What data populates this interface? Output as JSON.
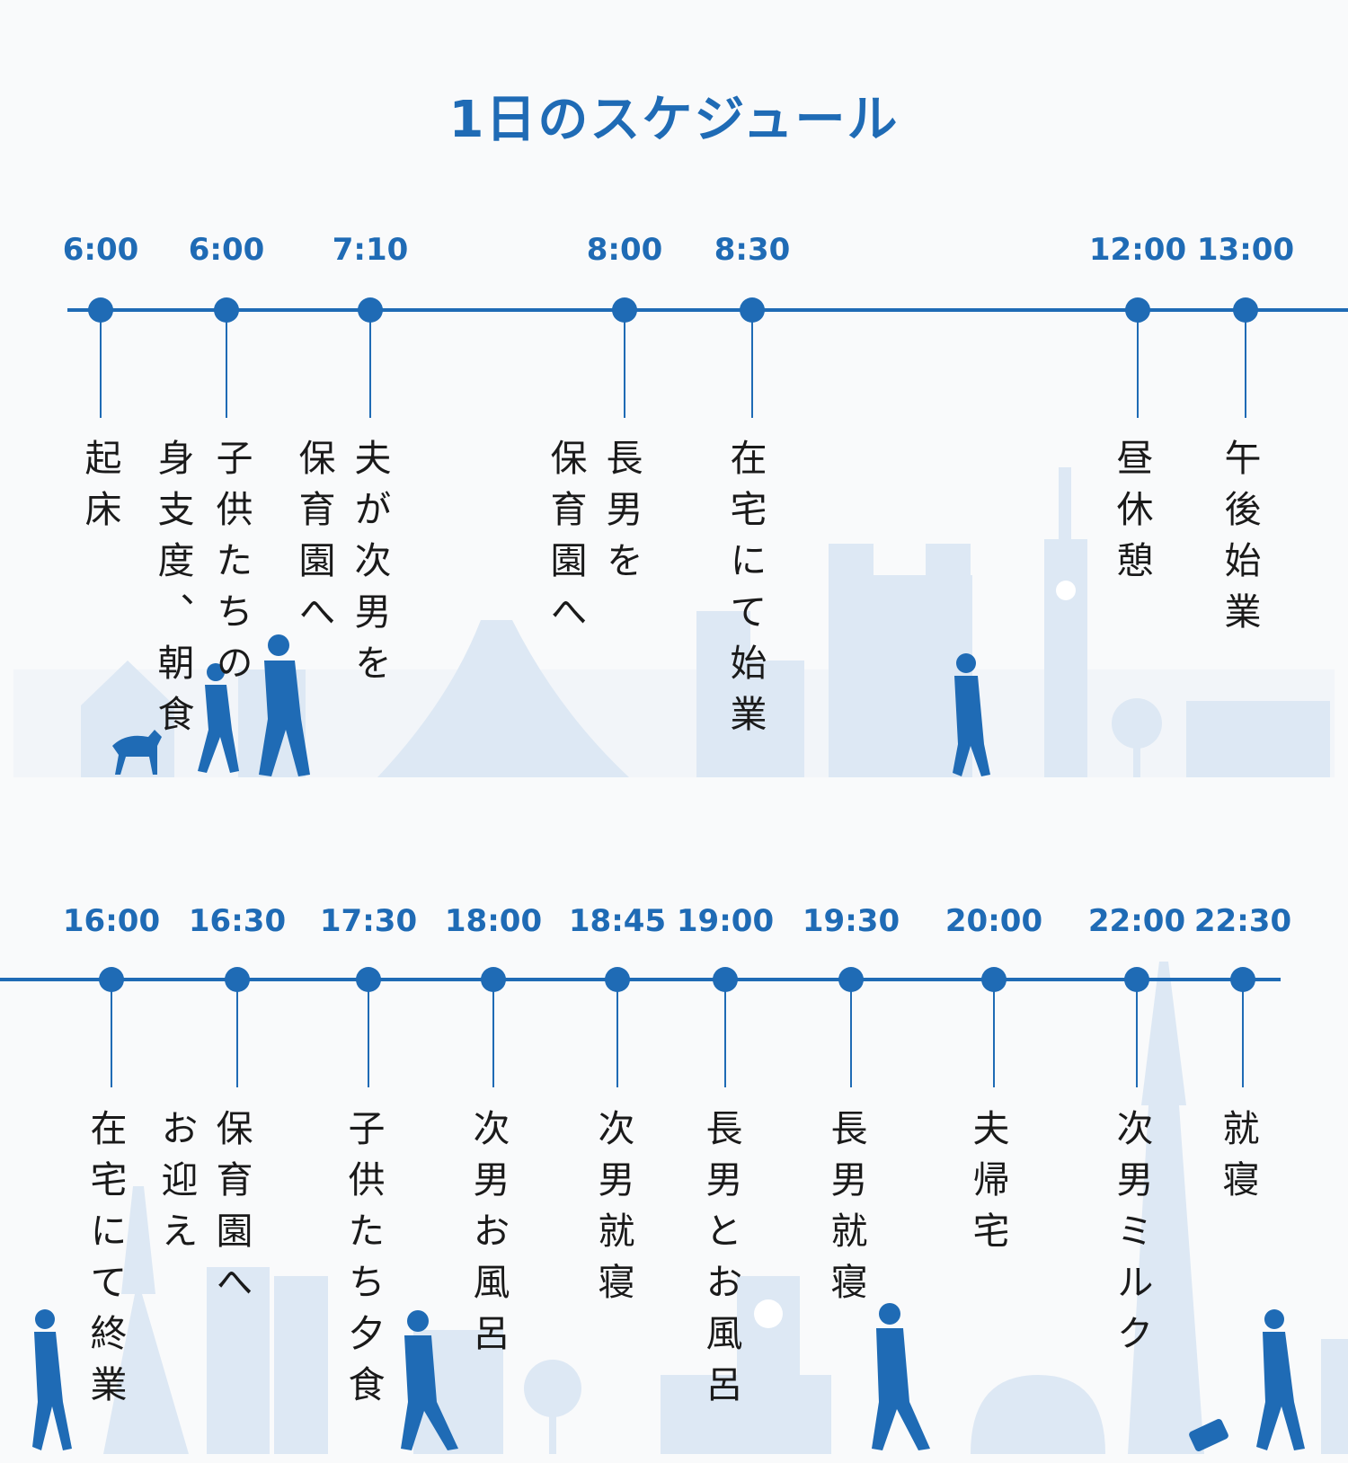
{
  "title": "1日のスケジュール",
  "rows": [
    {
      "events": [
        {
          "time": "6:00",
          "lines": [
            "起床"
          ]
        },
        {
          "time": "6:00",
          "lines": [
            "子供たちの",
            "身支度、朝食"
          ]
        },
        {
          "time": "7:10",
          "lines": [
            "夫が次男を",
            "保育園へ"
          ]
        },
        {
          "time": "8:00",
          "lines": [
            "長男を",
            "保育園へ"
          ]
        },
        {
          "time": "8:30",
          "lines": [
            "在宅にて始業"
          ]
        },
        {
          "time": "12:00",
          "lines": [
            "昼休憩"
          ]
        },
        {
          "time": "13:00",
          "lines": [
            "午後始業"
          ]
        }
      ]
    },
    {
      "events": [
        {
          "time": "16:00",
          "lines": [
            "在宅にて終業"
          ]
        },
        {
          "time": "16:30",
          "lines": [
            "保育園へ",
            "お迎え"
          ]
        },
        {
          "time": "17:30",
          "lines": [
            "子供たち夕食"
          ]
        },
        {
          "time": "18:00",
          "lines": [
            "次男お風呂"
          ]
        },
        {
          "time": "18:45",
          "lines": [
            "次男就寝"
          ]
        },
        {
          "time": "19:00",
          "lines": [
            "長男とお風呂"
          ]
        },
        {
          "time": "19:30",
          "lines": [
            "長男就寝"
          ]
        },
        {
          "time": "20:00",
          "lines": [
            "夫帰宅"
          ]
        },
        {
          "time": "22:00",
          "lines": [
            "次男ミルク"
          ]
        },
        {
          "time": "22:30",
          "lines": [
            "就寝"
          ]
        }
      ]
    }
  ],
  "colors": {
    "accent": "#1f6bb5",
    "skyline": "#dde8f4",
    "figure": "#1f6bb5",
    "background": "#f9fafb"
  }
}
